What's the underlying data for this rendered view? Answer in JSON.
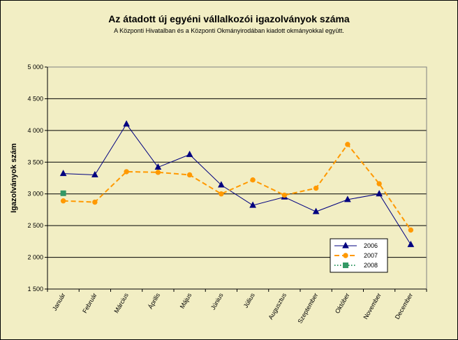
{
  "chart_data": {
    "type": "line",
    "title": "Az átadott új egyéni vállalkozói  igazolványok száma",
    "subtitle": "A Központi Hivatalban és a Központi Okmányirodában kiadott okmányokkal együtt.",
    "ylabel": "Igazolványok szám",
    "xlabel": "",
    "categories": [
      "Január",
      "Február",
      "Március",
      "Április",
      "Május",
      "Június",
      "Július",
      "Augusztus",
      "Szeptember",
      "Október",
      "November",
      "December"
    ],
    "ylim": [
      1500,
      5000
    ],
    "yticks": [
      1500,
      2000,
      2500,
      3000,
      3500,
      4000,
      4500,
      5000
    ],
    "ytick_labels": [
      "1 500",
      "2 000",
      "2 500",
      "3 000",
      "3 500",
      "4 000",
      "4 500",
      "5 000"
    ],
    "grid": "horizontal",
    "legend_position": "bottom-right",
    "series": [
      {
        "name": "2006",
        "color": "#000080",
        "marker": "triangle",
        "dash": "solid",
        "values": [
          3320,
          3300,
          4100,
          3420,
          3620,
          3140,
          2820,
          2950,
          2720,
          2910,
          3000,
          2200
        ]
      },
      {
        "name": "2007",
        "color": "#ff9900",
        "marker": "circle",
        "dash": "dashed",
        "values": [
          2890,
          2870,
          3350,
          3340,
          3300,
          3000,
          3220,
          2980,
          3090,
          3780,
          3160,
          2430
        ]
      },
      {
        "name": "2008",
        "color": "#339966",
        "marker": "square",
        "dash": "dotted",
        "values": [
          3010,
          null,
          null,
          null,
          null,
          null,
          null,
          null,
          null,
          null,
          null,
          null
        ]
      }
    ]
  }
}
